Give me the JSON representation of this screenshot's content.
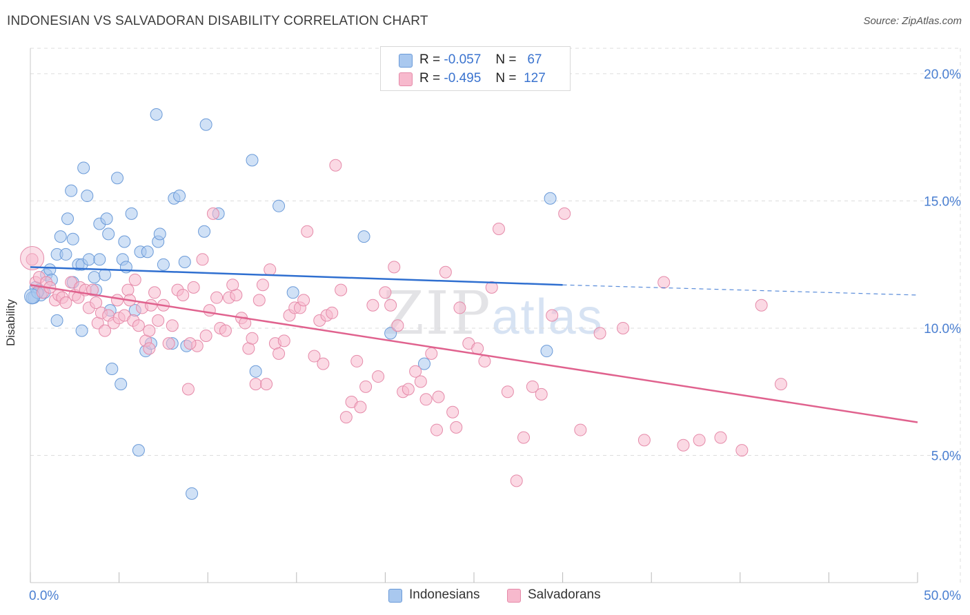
{
  "title": "INDONESIAN VS SALVADORAN DISABILITY CORRELATION CHART",
  "source": "Source: ZipAtlas.com",
  "watermark": {
    "zip": "ZIP",
    "atlas": "atlas"
  },
  "legend": {
    "rows": [
      {
        "r_label": "R =",
        "r_value": "-0.057",
        "n_label": "N =",
        "n_value": "67",
        "color": "#a9c8ef"
      },
      {
        "r_label": "R =",
        "r_value": "-0.495",
        "n_label": "N =",
        "n_value": "127",
        "color": "#f7b9cd"
      }
    ]
  },
  "bottom_legend": [
    {
      "label": "Indonesians",
      "color": "#a9c8ef"
    },
    {
      "label": "Salvadorans",
      "color": "#f7b9cd"
    }
  ],
  "chart_data": {
    "type": "scatter",
    "title": "INDONESIAN VS SALVADORAN DISABILITY CORRELATION CHART",
    "xlabel": "",
    "ylabel": "Disability",
    "xlim": [
      0,
      50
    ],
    "ylim": [
      0,
      21
    ],
    "x_tick_labels": [
      "0.0%",
      "50.0%"
    ],
    "y_ticks": [
      5,
      10,
      15,
      20
    ],
    "y_tick_labels": [
      "5.0%",
      "10.0%",
      "15.0%",
      "20.0%"
    ],
    "grid": true,
    "legend_position": "top-center",
    "colors": {
      "indonesians_fill": "#a9c8ef",
      "indonesians_stroke": "#6a9ad8",
      "indonesians_line": "#2f6fd0",
      "salvadorans_fill": "#f7b9cd",
      "salvadorans_stroke": "#e58aa9",
      "salvadorans_line": "#e0628e"
    },
    "series": [
      {
        "name": "Indonesians",
        "trend": {
          "x0": 0,
          "y0": 12.4,
          "x1": 30,
          "y1": 11.7,
          "dash_to": 50,
          "dash_y": 11.3
        },
        "points": [
          [
            0.2,
            11.2
          ],
          [
            0.3,
            11.6
          ],
          [
            0.5,
            11.5
          ],
          [
            0.6,
            11.3
          ],
          [
            0.8,
            11.4
          ],
          [
            0.9,
            12.1
          ],
          [
            1.1,
            12.3
          ],
          [
            1.2,
            11.9
          ],
          [
            1.5,
            10.3
          ],
          [
            1.5,
            12.9
          ],
          [
            1.7,
            13.6
          ],
          [
            2.0,
            12.9
          ],
          [
            2.1,
            14.3
          ],
          [
            2.3,
            15.4
          ],
          [
            2.4,
            11.8
          ],
          [
            2.4,
            13.5
          ],
          [
            2.7,
            12.5
          ],
          [
            2.9,
            12.5
          ],
          [
            2.9,
            9.9
          ],
          [
            3.0,
            16.3
          ],
          [
            3.2,
            15.2
          ],
          [
            3.3,
            12.7
          ],
          [
            3.6,
            12.0
          ],
          [
            3.7,
            11.5
          ],
          [
            3.9,
            14.1
          ],
          [
            3.9,
            12.7
          ],
          [
            4.2,
            12.1
          ],
          [
            4.3,
            14.3
          ],
          [
            4.4,
            13.7
          ],
          [
            4.5,
            10.7
          ],
          [
            4.6,
            8.4
          ],
          [
            4.9,
            15.9
          ],
          [
            5.1,
            7.8
          ],
          [
            5.2,
            12.7
          ],
          [
            5.3,
            13.4
          ],
          [
            5.4,
            12.4
          ],
          [
            5.7,
            14.5
          ],
          [
            5.9,
            10.7
          ],
          [
            6.1,
            5.2
          ],
          [
            6.2,
            13.0
          ],
          [
            6.5,
            9.1
          ],
          [
            6.6,
            13.0
          ],
          [
            6.8,
            9.4
          ],
          [
            7.1,
            18.4
          ],
          [
            7.2,
            13.4
          ],
          [
            7.3,
            13.7
          ],
          [
            7.5,
            12.5
          ],
          [
            8.0,
            9.4
          ],
          [
            8.1,
            15.1
          ],
          [
            8.4,
            15.2
          ],
          [
            8.7,
            12.6
          ],
          [
            8.8,
            9.3
          ],
          [
            9.1,
            3.5
          ],
          [
            9.8,
            13.8
          ],
          [
            9.9,
            18.0
          ],
          [
            10.6,
            14.5
          ],
          [
            12.5,
            16.6
          ],
          [
            12.7,
            8.3
          ],
          [
            14.0,
            14.8
          ],
          [
            14.8,
            11.4
          ],
          [
            18.8,
            13.6
          ],
          [
            20.3,
            9.8
          ],
          [
            22.2,
            8.6
          ],
          [
            29.3,
            15.1
          ],
          [
            29.1,
            9.1
          ],
          [
            0.1,
            11.2
          ],
          [
            0.4,
            11.4
          ]
        ]
      },
      {
        "name": "Salvadorans",
        "trend": {
          "x0": 0,
          "y0": 11.7,
          "x1": 50,
          "y1": 6.3
        },
        "points": [
          [
            0.1,
            12.7
          ],
          [
            0.3,
            11.8
          ],
          [
            0.5,
            12.0
          ],
          [
            0.7,
            11.4
          ],
          [
            0.9,
            11.8
          ],
          [
            1.1,
            11.6
          ],
          [
            1.4,
            11.1
          ],
          [
            1.6,
            11.3
          ],
          [
            1.8,
            11.2
          ],
          [
            2.0,
            11.0
          ],
          [
            2.3,
            11.8
          ],
          [
            2.5,
            11.3
          ],
          [
            2.7,
            11.2
          ],
          [
            2.8,
            11.6
          ],
          [
            3.1,
            11.5
          ],
          [
            3.3,
            10.8
          ],
          [
            3.5,
            11.5
          ],
          [
            3.7,
            11.0
          ],
          [
            3.8,
            10.2
          ],
          [
            4.0,
            10.6
          ],
          [
            4.2,
            9.9
          ],
          [
            4.4,
            10.5
          ],
          [
            4.7,
            10.2
          ],
          [
            4.9,
            11.1
          ],
          [
            5.0,
            10.4
          ],
          [
            5.3,
            10.5
          ],
          [
            5.5,
            11.5
          ],
          [
            5.6,
            11.1
          ],
          [
            5.8,
            10.3
          ],
          [
            5.9,
            11.9
          ],
          [
            6.1,
            10.1
          ],
          [
            6.3,
            10.8
          ],
          [
            6.5,
            9.5
          ],
          [
            6.7,
            9.9
          ],
          [
            6.8,
            10.9
          ],
          [
            7.0,
            11.4
          ],
          [
            7.2,
            10.3
          ],
          [
            7.5,
            10.9
          ],
          [
            7.8,
            9.4
          ],
          [
            8.0,
            10.1
          ],
          [
            8.3,
            11.5
          ],
          [
            8.6,
            11.3
          ],
          [
            8.9,
            7.6
          ],
          [
            9.2,
            11.6
          ],
          [
            9.4,
            9.3
          ],
          [
            9.7,
            12.7
          ],
          [
            9.9,
            9.7
          ],
          [
            10.1,
            10.7
          ],
          [
            10.3,
            14.5
          ],
          [
            10.5,
            11.2
          ],
          [
            10.7,
            10.0
          ],
          [
            11.0,
            9.9
          ],
          [
            11.2,
            11.2
          ],
          [
            11.6,
            11.3
          ],
          [
            11.9,
            10.4
          ],
          [
            12.1,
            10.2
          ],
          [
            12.3,
            9.2
          ],
          [
            12.5,
            9.6
          ],
          [
            12.7,
            7.8
          ],
          [
            12.9,
            11.1
          ],
          [
            13.1,
            11.7
          ],
          [
            13.3,
            7.8
          ],
          [
            13.8,
            9.4
          ],
          [
            14.0,
            9.0
          ],
          [
            14.3,
            9.5
          ],
          [
            14.6,
            10.5
          ],
          [
            14.9,
            10.8
          ],
          [
            15.2,
            10.8
          ],
          [
            15.6,
            13.8
          ],
          [
            16.0,
            8.9
          ],
          [
            16.3,
            10.3
          ],
          [
            16.7,
            10.5
          ],
          [
            17.0,
            10.6
          ],
          [
            17.2,
            16.4
          ],
          [
            17.5,
            11.5
          ],
          [
            17.8,
            6.5
          ],
          [
            18.1,
            7.1
          ],
          [
            18.4,
            8.7
          ],
          [
            18.9,
            7.7
          ],
          [
            19.3,
            10.9
          ],
          [
            19.6,
            8.1
          ],
          [
            20.0,
            11.4
          ],
          [
            20.3,
            10.9
          ],
          [
            20.7,
            10.1
          ],
          [
            21.0,
            7.5
          ],
          [
            21.3,
            7.6
          ],
          [
            21.7,
            8.3
          ],
          [
            22.0,
            7.9
          ],
          [
            22.3,
            7.2
          ],
          [
            22.6,
            9.0
          ],
          [
            23.0,
            7.3
          ],
          [
            23.4,
            12.2
          ],
          [
            23.8,
            6.7
          ],
          [
            24.2,
            10.8
          ],
          [
            24.7,
            9.4
          ],
          [
            25.2,
            9.2
          ],
          [
            25.6,
            8.7
          ],
          [
            26.0,
            11.6
          ],
          [
            26.4,
            13.9
          ],
          [
            26.9,
            7.5
          ],
          [
            27.4,
            4.0
          ],
          [
            27.8,
            5.7
          ],
          [
            28.3,
            7.7
          ],
          [
            28.8,
            7.4
          ],
          [
            29.4,
            10.5
          ],
          [
            30.1,
            14.5
          ],
          [
            31.0,
            6.0
          ],
          [
            32.1,
            9.8
          ],
          [
            33.4,
            10.0
          ],
          [
            34.6,
            5.6
          ],
          [
            35.7,
            11.8
          ],
          [
            36.8,
            5.4
          ],
          [
            37.7,
            5.6
          ],
          [
            38.9,
            5.7
          ],
          [
            40.1,
            5.2
          ],
          [
            41.2,
            10.9
          ],
          [
            42.3,
            7.8
          ],
          [
            9.0,
            9.4
          ],
          [
            13.5,
            12.3
          ],
          [
            16.5,
            8.6
          ],
          [
            20.5,
            12.4
          ],
          [
            22.9,
            6.0
          ],
          [
            24.0,
            6.1
          ],
          [
            6.7,
            9.2
          ],
          [
            11.4,
            11.7
          ],
          [
            18.6,
            6.9
          ],
          [
            15.4,
            11.1
          ]
        ]
      }
    ]
  }
}
